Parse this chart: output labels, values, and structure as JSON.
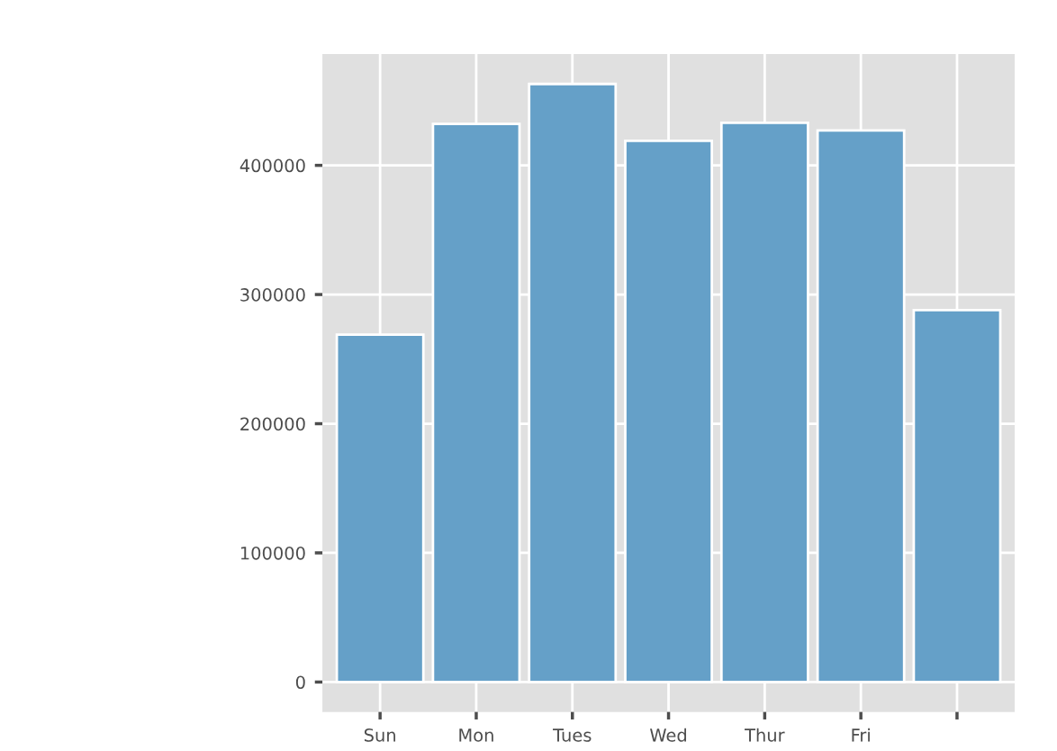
{
  "chart_data": {
    "type": "bar",
    "categories": [
      "Sun",
      "Mon",
      "Tues",
      "Wed",
      "Thur",
      "Fri",
      null
    ],
    "values": [
      269000,
      432000,
      463000,
      419000,
      433000,
      427000,
      288000
    ],
    "color": "#65a0c8",
    "ylim": [
      -23150,
      486150
    ],
    "yticks": [
      0,
      100000,
      200000,
      300000,
      400000
    ],
    "grid": true
  }
}
